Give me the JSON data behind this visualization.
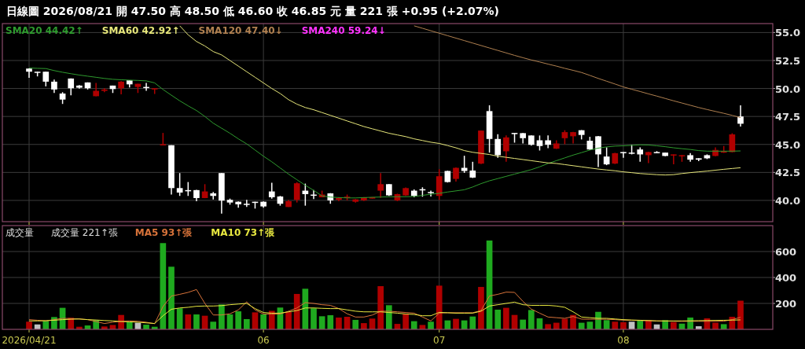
{
  "chart_data": [
    {
      "type": "candlestick",
      "title": "日線圖 2026/08/21 開 47.50 高 48.50 低 46.60 收 46.85 元 量 221 張 +0.95 (+2.07%)",
      "categories": [
        "2026/04/21",
        null,
        null,
        null,
        null,
        null,
        null,
        null,
        null,
        null,
        null,
        null,
        null,
        null,
        null,
        null,
        null,
        null,
        null,
        null,
        null,
        null,
        null,
        null,
        null,
        null,
        null,
        null,
        "06",
        null,
        null,
        null,
        null,
        null,
        null,
        null,
        null,
        null,
        null,
        null,
        null,
        null,
        null,
        null,
        null,
        null,
        null,
        null,
        null,
        "07",
        null,
        null,
        null,
        null,
        null,
        null,
        null,
        null,
        null,
        null,
        null,
        null,
        null,
        null,
        null,
        null,
        null,
        null,
        null,
        null,
        null,
        "08",
        null,
        null,
        null,
        null,
        null,
        null,
        null,
        null,
        null,
        null,
        null,
        null,
        null,
        null
      ],
      "ohlc": [
        [
          51.78,
          51.8,
          50.96,
          51.5
        ],
        [
          51.5,
          51.5,
          51.08,
          51.45
        ],
        [
          51.5,
          51.5,
          50.19,
          50.61
        ],
        [
          50.61,
          50.8,
          49.6,
          49.91
        ],
        [
          49.55,
          49.67,
          48.62,
          49.01
        ],
        [
          50.89,
          50.9,
          49.39,
          50.02
        ],
        [
          50.26,
          50.3,
          49.98,
          50.07
        ],
        [
          50.54,
          50.55,
          49.91,
          50.02
        ],
        [
          49.31,
          50.49,
          49.3,
          49.79
        ],
        [
          49.79,
          50.02,
          49.67,
          49.91
        ],
        [
          50.26,
          50.26,
          49.6,
          49.95
        ],
        [
          50.02,
          50.66,
          49.48,
          50.61
        ],
        [
          50.73,
          50.75,
          50.09,
          50.37
        ],
        [
          50.14,
          50.42,
          49.6,
          50.42
        ],
        [
          50.14,
          50.49,
          49.79,
          50.12
        ],
        [
          49.95,
          50.02,
          49.51,
          50.02
        ],
        [
          44.93,
          46.03,
          44.93,
          45.02
        ],
        [
          44.93,
          44.93,
          40.52,
          41.1
        ],
        [
          41.1,
          42.44,
          40.4,
          40.7
        ],
        [
          40.92,
          41.64,
          40.4,
          40.88
        ],
        [
          40.92,
          40.95,
          39.93,
          40.21
        ],
        [
          40.21,
          41.45,
          40.2,
          40.8
        ],
        [
          40.63,
          40.75,
          40.09,
          40.4
        ],
        [
          42.44,
          42.44,
          38.82,
          39.98
        ],
        [
          40.05,
          40.16,
          39.62,
          39.81
        ],
        [
          39.88,
          39.9,
          39.34,
          39.65
        ],
        [
          39.7,
          40.05,
          39.41,
          39.67
        ],
        [
          39.88,
          39.88,
          39.27,
          39.81
        ],
        [
          39.88,
          39.9,
          39.34,
          39.46
        ],
        [
          40.8,
          41.57,
          40.16,
          40.28
        ],
        [
          40.35,
          40.4,
          39.53,
          39.7
        ],
        [
          39.41,
          40.05,
          39.41,
          39.93
        ],
        [
          40.05,
          41.62,
          39.81,
          41.53
        ],
        [
          40.87,
          41.5,
          39.53,
          40.56
        ],
        [
          40.52,
          40.92,
          40.12,
          40.5
        ],
        [
          40.28,
          40.87,
          40.28,
          40.52
        ],
        [
          40.63,
          40.65,
          39.7,
          40.0
        ],
        [
          40.05,
          40.3,
          39.93,
          40.21
        ],
        [
          40.21,
          40.52,
          40.0,
          40.33
        ],
        [
          39.88,
          40.12,
          39.81,
          40.09
        ],
        [
          40.0,
          40.3,
          39.95,
          40.28
        ],
        [
          40.16,
          40.3,
          40.15,
          40.28
        ],
        [
          40.87,
          42.44,
          40.23,
          41.45
        ],
        [
          41.45,
          41.45,
          40.4,
          40.45
        ],
        [
          40.0,
          40.6,
          39.93,
          40.56
        ],
        [
          40.45,
          41.15,
          40.4,
          41.1
        ],
        [
          40.87,
          40.98,
          40.28,
          40.4
        ],
        [
          41.0,
          41.17,
          40.33,
          40.95
        ],
        [
          40.75,
          40.87,
          40.35,
          40.72
        ],
        [
          40.4,
          42.79,
          40.05,
          42.16
        ],
        [
          42.63,
          42.65,
          41.6,
          41.64
        ],
        [
          41.92,
          42.95,
          41.69,
          42.91
        ],
        [
          42.91,
          43.99,
          42.46,
          42.63
        ],
        [
          42.67,
          43.45,
          42.0,
          42.04
        ],
        [
          43.29,
          46.25,
          43.25,
          46.24
        ],
        [
          47.98,
          48.5,
          44.27,
          45.49
        ],
        [
          45.49,
          45.92,
          43.8,
          44.04
        ],
        [
          44.39,
          45.8,
          43.45,
          45.63
        ],
        [
          46.03,
          46.03,
          45.16,
          45.97
        ],
        [
          46.01,
          46.02,
          45.09,
          45.56
        ],
        [
          45.8,
          45.8,
          44.9,
          44.97
        ],
        [
          45.37,
          45.8,
          44.46,
          44.86
        ],
        [
          45.37,
          45.8,
          44.67,
          44.97
        ],
        [
          44.62,
          45.37,
          44.6,
          45.09
        ],
        [
          45.56,
          46.27,
          45.02,
          46.1
        ],
        [
          45.73,
          46.12,
          45.09,
          46.1
        ],
        [
          46.27,
          46.28,
          45.45,
          45.85
        ],
        [
          45.33,
          45.68,
          44.5,
          44.55
        ],
        [
          45.73,
          45.75,
          42.98,
          44.11
        ],
        [
          43.92,
          44.74,
          43.15,
          43.22
        ],
        [
          43.29,
          44.25,
          43.25,
          44.22
        ],
        [
          44.32,
          44.32,
          43.8,
          44.22
        ],
        [
          44.27,
          44.97,
          44.11,
          44.24
        ],
        [
          44.55,
          44.74,
          43.45,
          44.11
        ],
        [
          44.04,
          44.35,
          43.33,
          44.32
        ],
        [
          44.32,
          44.4,
          44.22,
          44.3
        ],
        [
          44.27,
          44.27,
          43.95,
          43.97
        ],
        [
          44.04,
          44.11,
          43.22,
          44.11
        ],
        [
          43.97,
          44.06,
          43.45,
          44.04
        ],
        [
          44.04,
          44.22,
          43.45,
          43.64
        ],
        [
          43.76,
          43.77,
          43.5,
          43.64
        ],
        [
          44.04,
          44.11,
          43.69,
          43.76
        ],
        [
          43.97,
          44.74,
          43.95,
          44.51
        ],
        [
          44.27,
          44.86,
          44.25,
          44.39
        ],
        [
          44.32,
          46.0,
          44.3,
          45.9
        ],
        [
          47.5,
          48.5,
          46.6,
          46.85
        ]
      ],
      "colors": [
        "#ffffff",
        "#ffffff",
        "#ffffff",
        "#ffffff",
        "#ffffff",
        "#ffffff",
        "#ffffff",
        "#ffffff",
        "#b00000",
        "#b00000",
        "#ffffff",
        "#b00000",
        "#ffffff",
        "#b00000",
        "#ffffff",
        "#b00000",
        "#b00000",
        "#ffffff",
        "#ffffff",
        "#ffffff",
        "#ffffff",
        "#b00000",
        "#ffffff",
        "#ffffff",
        "#ffffff",
        "#ffffff",
        "#ffffff",
        "#ffffff",
        "#ffffff",
        "#ffffff",
        "#ffffff",
        "#b00000",
        "#b00000",
        "#ffffff",
        "#ffffff",
        "#b00000",
        "#ffffff",
        "#b00000",
        "#b00000",
        "#b00000",
        "#b00000",
        "#b00000",
        "#b00000",
        "#ffffff",
        "#b00000",
        "#b00000",
        "#ffffff",
        "#ffffff",
        "#ffffff",
        "#b00000",
        "#ffffff",
        "#b00000",
        "#ffffff",
        "#ffffff",
        "#b00000",
        "#ffffff",
        "#ffffff",
        "#b00000",
        "#ffffff",
        "#ffffff",
        "#ffffff",
        "#ffffff",
        "#ffffff",
        "#b00000",
        "#b00000",
        "#b00000",
        "#ffffff",
        "#ffffff",
        "#ffffff",
        "#ffffff",
        "#b00000",
        "#ffffff",
        "#ffffff",
        "#ffffff",
        "#b00000",
        "#ffffff",
        "#ffffff",
        "#b00000",
        "#b00000",
        "#ffffff",
        "#ffffff",
        "#ffffff",
        "#b00000",
        "#b00000",
        "#b00000",
        "#ffffff"
      ],
      "series": [
        {
          "type": "line",
          "name": "SMA20 44.42↑",
          "color": "#2e9a2e",
          "values": [
            51.83,
            51.8,
            51.78,
            51.6,
            51.45,
            51.32,
            51.2,
            51.1,
            51.0,
            50.9,
            50.82,
            50.78,
            50.75,
            50.72,
            50.68,
            50.5,
            49.91,
            49.4,
            48.9,
            48.45,
            48.03,
            47.5,
            46.9,
            46.45,
            46.0,
            45.5,
            45.05,
            44.5,
            43.95,
            43.45,
            42.9,
            42.35,
            41.85,
            41.35,
            40.9,
            40.4,
            40.3,
            40.25,
            40.22,
            40.22,
            40.25,
            40.28,
            40.3,
            40.32,
            40.33,
            40.33,
            40.35,
            40.45,
            40.55,
            40.63,
            40.75,
            40.85,
            40.95,
            41.2,
            41.5,
            41.75,
            41.95,
            42.15,
            42.35,
            42.55,
            42.75,
            43.0,
            43.3,
            43.55,
            43.8,
            44.05,
            44.27,
            44.5,
            44.67,
            44.78,
            44.85,
            44.88,
            44.92,
            44.97,
            44.95,
            44.88,
            44.8,
            44.7,
            44.62,
            44.55,
            44.45,
            44.4,
            44.4,
            44.4,
            44.4,
            44.42
          ]
        },
        {
          "type": "line",
          "name": "SMA60 42.92↑",
          "color": "#e6e67a",
          "values": [
            null,
            null,
            null,
            null,
            null,
            null,
            null,
            null,
            null,
            null,
            null,
            null,
            null,
            null,
            null,
            null,
            null,
            null,
            55.6,
            54.8,
            54.2,
            53.8,
            53.3,
            53.0,
            52.5,
            52.0,
            51.5,
            51.0,
            50.5,
            50.0,
            49.55,
            49.0,
            48.6,
            48.3,
            48.1,
            47.85,
            47.6,
            47.35,
            47.1,
            46.85,
            46.6,
            46.4,
            46.2,
            46.0,
            45.85,
            45.7,
            45.5,
            45.35,
            45.2,
            45.09,
            44.9,
            44.7,
            44.45,
            44.3,
            44.2,
            44.1,
            43.95,
            43.85,
            43.75,
            43.65,
            43.55,
            43.45,
            43.35,
            43.3,
            43.2,
            43.1,
            43.0,
            42.9,
            42.8,
            42.72,
            42.65,
            42.55,
            42.48,
            42.4,
            42.35,
            42.3,
            42.27,
            42.3,
            42.4,
            42.48,
            42.55,
            42.62,
            42.7,
            42.78,
            42.85,
            42.92
          ]
        },
        {
          "type": "line",
          "name": "SMA120 47.40↓",
          "color": "#b08050",
          "values": [
            null,
            null,
            null,
            null,
            null,
            null,
            null,
            null,
            null,
            null,
            null,
            null,
            null,
            null,
            null,
            null,
            null,
            null,
            null,
            null,
            null,
            null,
            null,
            null,
            null,
            null,
            null,
            null,
            null,
            null,
            null,
            null,
            null,
            null,
            null,
            null,
            null,
            null,
            null,
            null,
            null,
            null,
            null,
            null,
            null,
            null,
            55.6,
            55.38,
            55.16,
            54.94,
            54.72,
            54.5,
            54.28,
            54.06,
            53.84,
            53.62,
            53.4,
            53.18,
            52.96,
            52.75,
            52.55,
            52.37,
            52.18,
            52.0,
            51.8,
            51.62,
            51.43,
            51.17,
            50.9,
            50.65,
            50.4,
            50.14,
            49.93,
            49.73,
            49.52,
            49.32,
            49.11,
            48.9,
            48.7,
            48.5,
            48.3,
            48.12,
            47.95,
            47.78,
            47.6,
            47.4
          ]
        },
        {
          "type": "line",
          "name": "SMA240 59.24↓",
          "color": "#ff33ff",
          "values": [
            null,
            null,
            null,
            null,
            null,
            null,
            null,
            null,
            null,
            null,
            null,
            null,
            null,
            null,
            null,
            null,
            null,
            null,
            null,
            null,
            null,
            null,
            null,
            null,
            null,
            null,
            null,
            null,
            null,
            null,
            null,
            null,
            null,
            null,
            null,
            null,
            null,
            null,
            null,
            null,
            null,
            null,
            null,
            null,
            null,
            null,
            null,
            null,
            null,
            null,
            null,
            null,
            null,
            null,
            null,
            null,
            null,
            null,
            null,
            null,
            null,
            null,
            null,
            null,
            null,
            null,
            null,
            null,
            null,
            null,
            null,
            null,
            null,
            null,
            null,
            null,
            null,
            null,
            null,
            null,
            null,
            null,
            null,
            null,
            null,
            null
          ]
        }
      ],
      "ylim": [
        38.1,
        55.8
      ],
      "yticks": [
        {
          "value": 40,
          "label": "40.0"
        },
        {
          "value": 42.5,
          "label": "42.5"
        },
        {
          "value": 45,
          "label": "45.0"
        },
        {
          "value": 47.5,
          "label": "47.5"
        },
        {
          "value": 50,
          "label": "50.0"
        },
        {
          "value": 52.5,
          "label": "52.5"
        },
        {
          "value": 55,
          "label": "55.0"
        }
      ],
      "grid": true,
      "legend": "top left",
      "tick_labels": "y"
    },
    {
      "type": "bar",
      "categories": [
        "2026/04/21",
        null,
        null,
        null,
        null,
        null,
        null,
        null,
        null,
        null,
        null,
        null,
        null,
        null,
        null,
        null,
        null,
        null,
        null,
        null,
        null,
        null,
        null,
        null,
        null,
        null,
        null,
        null,
        "06",
        null,
        null,
        null,
        null,
        null,
        null,
        null,
        null,
        null,
        null,
        null,
        null,
        null,
        null,
        null,
        null,
        null,
        null,
        null,
        null,
        "07",
        null,
        null,
        null,
        null,
        null,
        null,
        null,
        null,
        null,
        null,
        null,
        null,
        null,
        null,
        null,
        null,
        null,
        null,
        null,
        null,
        null,
        "08",
        null,
        null,
        null,
        null,
        null,
        null,
        null,
        null,
        null,
        null,
        null,
        null,
        null,
        null
      ],
      "annotations": [
        "成交量",
        "成交量 221↑張"
      ],
      "series": [
        {
          "type": "bar",
          "values": [
            59,
            38,
            65,
            95,
            166,
            89,
            20,
            30,
            71,
            22,
            34,
            111,
            55,
            51,
            36,
            20,
            665,
            483,
            162,
            115,
            115,
            105,
            59,
            192,
            115,
            139,
            79,
            131,
            115,
            143,
            168,
            135,
            273,
            313,
            162,
            101,
            109,
            91,
            97,
            73,
            48,
            83,
            333,
            186,
            42,
            121,
            63,
            34,
            59,
            337,
            69,
            81,
            69,
            99,
            327,
            685,
            152,
            166,
            111,
            75,
            149,
            85,
            40,
            51,
            81,
            111,
            51,
            59,
            135,
            71,
            59,
            55,
            59,
            71,
            71,
            38,
            71,
            55,
            44,
            91,
            24,
            85,
            51,
            40,
            97,
            221
          ],
          "colors": [
            "#b00000",
            "#c0c0c0",
            "#1faa1f",
            "#1faa1f",
            "#1faa1f",
            "#b00000",
            "#b00000",
            "#1faa1f",
            "#1faa1f",
            "#b00000",
            "#b00000",
            "#b00000",
            "#1faa1f",
            "#c0c0c0",
            "#1faa1f",
            "#1faa1f",
            "#1faa1f",
            "#1faa1f",
            "#1faa1f",
            "#b00000",
            "#1faa1f",
            "#b00000",
            "#1faa1f",
            "#1faa1f",
            "#1faa1f",
            "#1faa1f",
            "#1faa1f",
            "#b00000",
            "#1faa1f",
            "#b00000",
            "#1faa1f",
            "#b00000",
            "#b00000",
            "#1faa1f",
            "#1faa1f",
            "#1faa1f",
            "#1faa1f",
            "#b00000",
            "#b00000",
            "#1faa1f",
            "#b00000",
            "#b00000",
            "#b00000",
            "#1faa1f",
            "#b00000",
            "#b00000",
            "#1faa1f",
            "#b00000",
            "#1faa1f",
            "#b00000",
            "#1faa1f",
            "#b00000",
            "#1faa1f",
            "#1faa1f",
            "#b00000",
            "#1faa1f",
            "#1faa1f",
            "#b00000",
            "#b00000",
            "#1faa1f",
            "#1faa1f",
            "#1faa1f",
            "#b00000",
            "#b00000",
            "#b00000",
            "#b00000",
            "#1faa1f",
            "#1faa1f",
            "#1faa1f",
            "#1faa1f",
            "#b00000",
            "#b00000",
            "#c0c0c0",
            "#1faa1f",
            "#b00000",
            "#c0c0c0",
            "#1faa1f",
            "#b00000",
            "#1faa1f",
            "#1faa1f",
            "#c0c0c0",
            "#b00000",
            "#b00000",
            "#1faa1f",
            "#b00000",
            "#b00000"
          ]
        },
        {
          "type": "line",
          "name": "MA5 93↑張",
          "color": "#d8733a",
          "values": [
            75,
            70,
            65,
            75,
            85,
            83,
            80,
            75,
            60,
            45,
            55,
            62,
            65,
            62,
            55,
            44,
            176,
            257,
            270,
            285,
            307,
            200,
            111,
            111,
            120,
            150,
            212,
            150,
            118,
            118,
            118,
            140,
            165,
            206,
            200,
            190,
            185,
            160,
            120,
            95,
            95,
            110,
            140,
            140,
            135,
            130,
            125,
            95,
            65,
            125,
            128,
            128,
            128,
            128,
            145,
            257,
            270,
            287,
            285,
            216,
            156,
            125,
            95,
            90,
            85,
            99,
            79,
            78,
            78,
            78,
            75,
            71,
            70,
            68,
            66,
            65,
            64,
            62,
            62,
            62,
            62,
            62,
            62,
            63,
            75,
            93
          ]
        },
        {
          "type": "line",
          "name": "MA10 73↑張",
          "color": "#e8e840",
          "values": [
            65,
            65,
            67,
            70,
            75,
            78,
            80,
            75,
            72,
            68,
            65,
            60,
            58,
            55,
            50,
            45,
            105,
            155,
            165,
            170,
            178,
            180,
            180,
            183,
            190,
            195,
            200,
            160,
            130,
            125,
            125,
            135,
            145,
            165,
            165,
            162,
            160,
            160,
            150,
            140,
            135,
            135,
            135,
            130,
            125,
            118,
            115,
            105,
            105,
            131,
            128,
            125,
            125,
            125,
            140,
            180,
            190,
            200,
            210,
            190,
            185,
            185,
            185,
            180,
            170,
            135,
            95,
            90,
            85,
            85,
            80,
            75,
            72,
            70,
            68,
            65,
            65,
            65,
            65,
            66,
            67,
            68,
            69,
            70,
            71,
            73
          ]
        }
      ],
      "ylim": [
        0,
        800
      ],
      "yticks": [
        200,
        400,
        600
      ],
      "grid": true,
      "legend": "top left"
    }
  ]
}
